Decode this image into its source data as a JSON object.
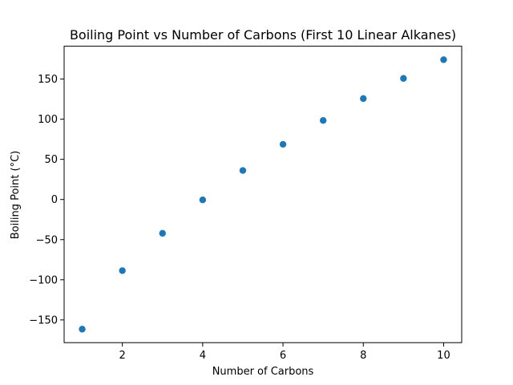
{
  "chart_data": {
    "type": "scatter",
    "title": "Boiling Point vs Number of Carbons (First 10 Linear Alkanes)",
    "xlabel": "Number of Carbons",
    "ylabel": "Boiling Point (°C)",
    "x": [
      1,
      2,
      3,
      4,
      5,
      6,
      7,
      8,
      9,
      10
    ],
    "y": [
      -161.5,
      -88.6,
      -42.1,
      -0.5,
      36.1,
      68.7,
      98.4,
      125.7,
      150.8,
      174.1
    ],
    "xlim": [
      0.55,
      10.45
    ],
    "ylim": [
      -178.3,
      190.9
    ],
    "xticks": [
      2,
      4,
      6,
      8,
      10
    ],
    "yticks": [
      -150,
      -100,
      -50,
      0,
      50,
      100,
      150
    ],
    "xtick_labels": [
      "2",
      "4",
      "6",
      "8",
      "10"
    ],
    "ytick_labels": [
      "−150",
      "−100",
      "−50",
      "0",
      "50",
      "100",
      "150"
    ],
    "grid": false,
    "color": "#1f77b4"
  }
}
